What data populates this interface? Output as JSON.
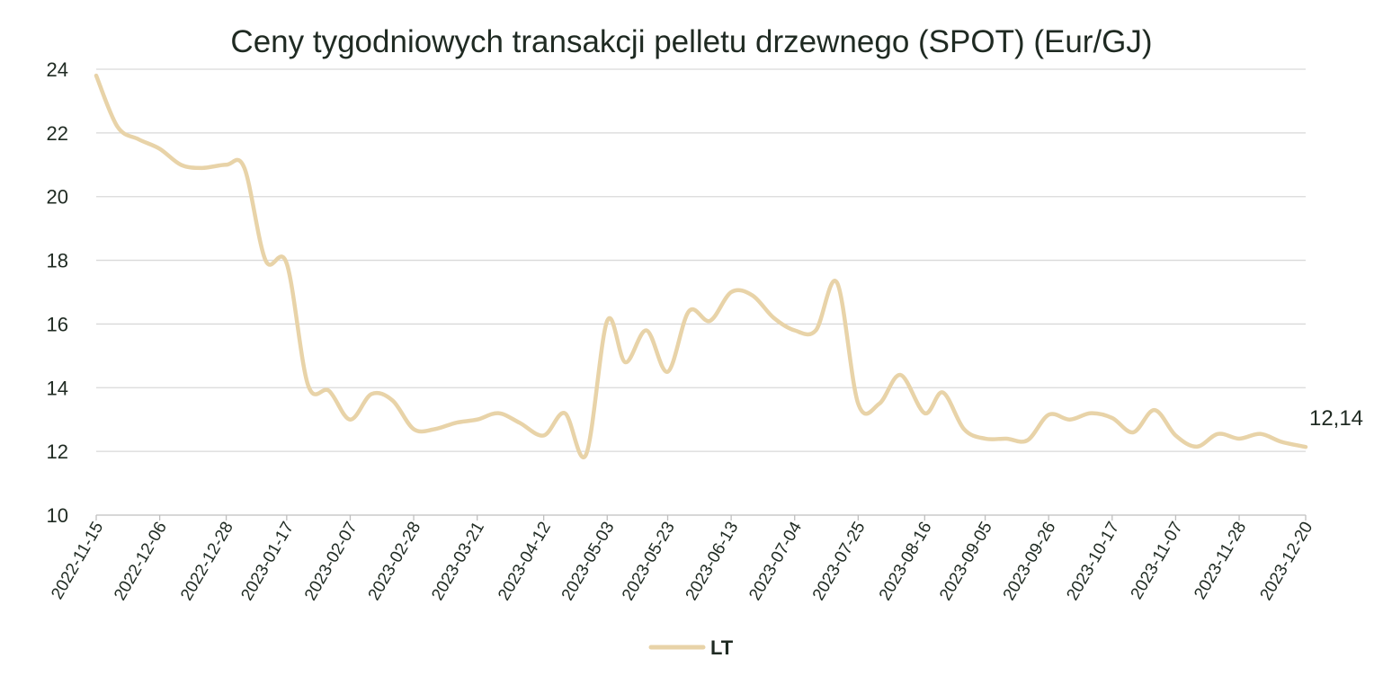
{
  "chart_data": {
    "type": "line",
    "title": "Ceny tygodniowych transakcji pelletu drzewnego (SPOT) (Eur/GJ)",
    "xlabel": "",
    "ylabel": "",
    "ylim": [
      10,
      24
    ],
    "yticks": [
      10,
      12,
      14,
      16,
      18,
      20,
      22,
      24
    ],
    "grid": true,
    "legend_position": "bottom",
    "x_tick_labels": [
      "2022-11-15",
      "2022-12-06",
      "2022-12-28",
      "2023-01-17",
      "2023-02-07",
      "2023-02-28",
      "2023-03-21",
      "2023-04-12",
      "2023-05-03",
      "2023-05-23",
      "2023-06-13",
      "2023-07-04",
      "2023-07-25",
      "2023-08-16",
      "2023-09-05",
      "2023-09-26",
      "2023-10-17",
      "2023-11-07",
      "2023-11-28",
      "2023-12-20"
    ],
    "series": [
      {
        "name": "LT",
        "color": "#e8d3a8",
        "points": [
          [
            "2022-11-15",
            23.8
          ],
          [
            "2022-11-22",
            22.2
          ],
          [
            "2022-11-29",
            21.8
          ],
          [
            "2022-12-06",
            21.5
          ],
          [
            "2022-12-13",
            21.0
          ],
          [
            "2022-12-20",
            20.9
          ],
          [
            "2022-12-28",
            21.0
          ],
          [
            "2023-01-03",
            20.9
          ],
          [
            "2023-01-10",
            18.0
          ],
          [
            "2023-01-17",
            17.9
          ],
          [
            "2023-01-24",
            14.1
          ],
          [
            "2023-01-31",
            13.9
          ],
          [
            "2023-02-07",
            13.0
          ],
          [
            "2023-02-14",
            13.8
          ],
          [
            "2023-02-21",
            13.6
          ],
          [
            "2023-02-28",
            12.7
          ],
          [
            "2023-03-07",
            12.7
          ],
          [
            "2023-03-14",
            12.9
          ],
          [
            "2023-03-21",
            13.0
          ],
          [
            "2023-03-28",
            13.2
          ],
          [
            "2023-04-04",
            12.9
          ],
          [
            "2023-04-12",
            12.5
          ],
          [
            "2023-04-19",
            13.2
          ],
          [
            "2023-04-26",
            11.9
          ],
          [
            "2023-05-03",
            16.1
          ],
          [
            "2023-05-09",
            14.8
          ],
          [
            "2023-05-16",
            15.8
          ],
          [
            "2023-05-23",
            14.5
          ],
          [
            "2023-05-30",
            16.4
          ],
          [
            "2023-06-06",
            16.1
          ],
          [
            "2023-06-13",
            17.0
          ],
          [
            "2023-06-20",
            16.9
          ],
          [
            "2023-06-27",
            16.2
          ],
          [
            "2023-07-04",
            15.8
          ],
          [
            "2023-07-11",
            15.8
          ],
          [
            "2023-07-18",
            17.3
          ],
          [
            "2023-07-25",
            13.5
          ],
          [
            "2023-08-01",
            13.5
          ],
          [
            "2023-08-08",
            14.4
          ],
          [
            "2023-08-16",
            13.2
          ],
          [
            "2023-08-22",
            13.85
          ],
          [
            "2023-08-29",
            12.7
          ],
          [
            "2023-09-05",
            12.4
          ],
          [
            "2023-09-12",
            12.4
          ],
          [
            "2023-09-19",
            12.35
          ],
          [
            "2023-09-26",
            13.15
          ],
          [
            "2023-10-03",
            13.0
          ],
          [
            "2023-10-10",
            13.2
          ],
          [
            "2023-10-17",
            13.05
          ],
          [
            "2023-10-24",
            12.6
          ],
          [
            "2023-10-31",
            13.3
          ],
          [
            "2023-11-07",
            12.5
          ],
          [
            "2023-11-14",
            12.15
          ],
          [
            "2023-11-21",
            12.55
          ],
          [
            "2023-11-28",
            12.4
          ],
          [
            "2023-12-05",
            12.55
          ],
          [
            "2023-12-12",
            12.3
          ],
          [
            "2023-12-20",
            12.14
          ]
        ],
        "end_label": "12,14"
      }
    ]
  }
}
